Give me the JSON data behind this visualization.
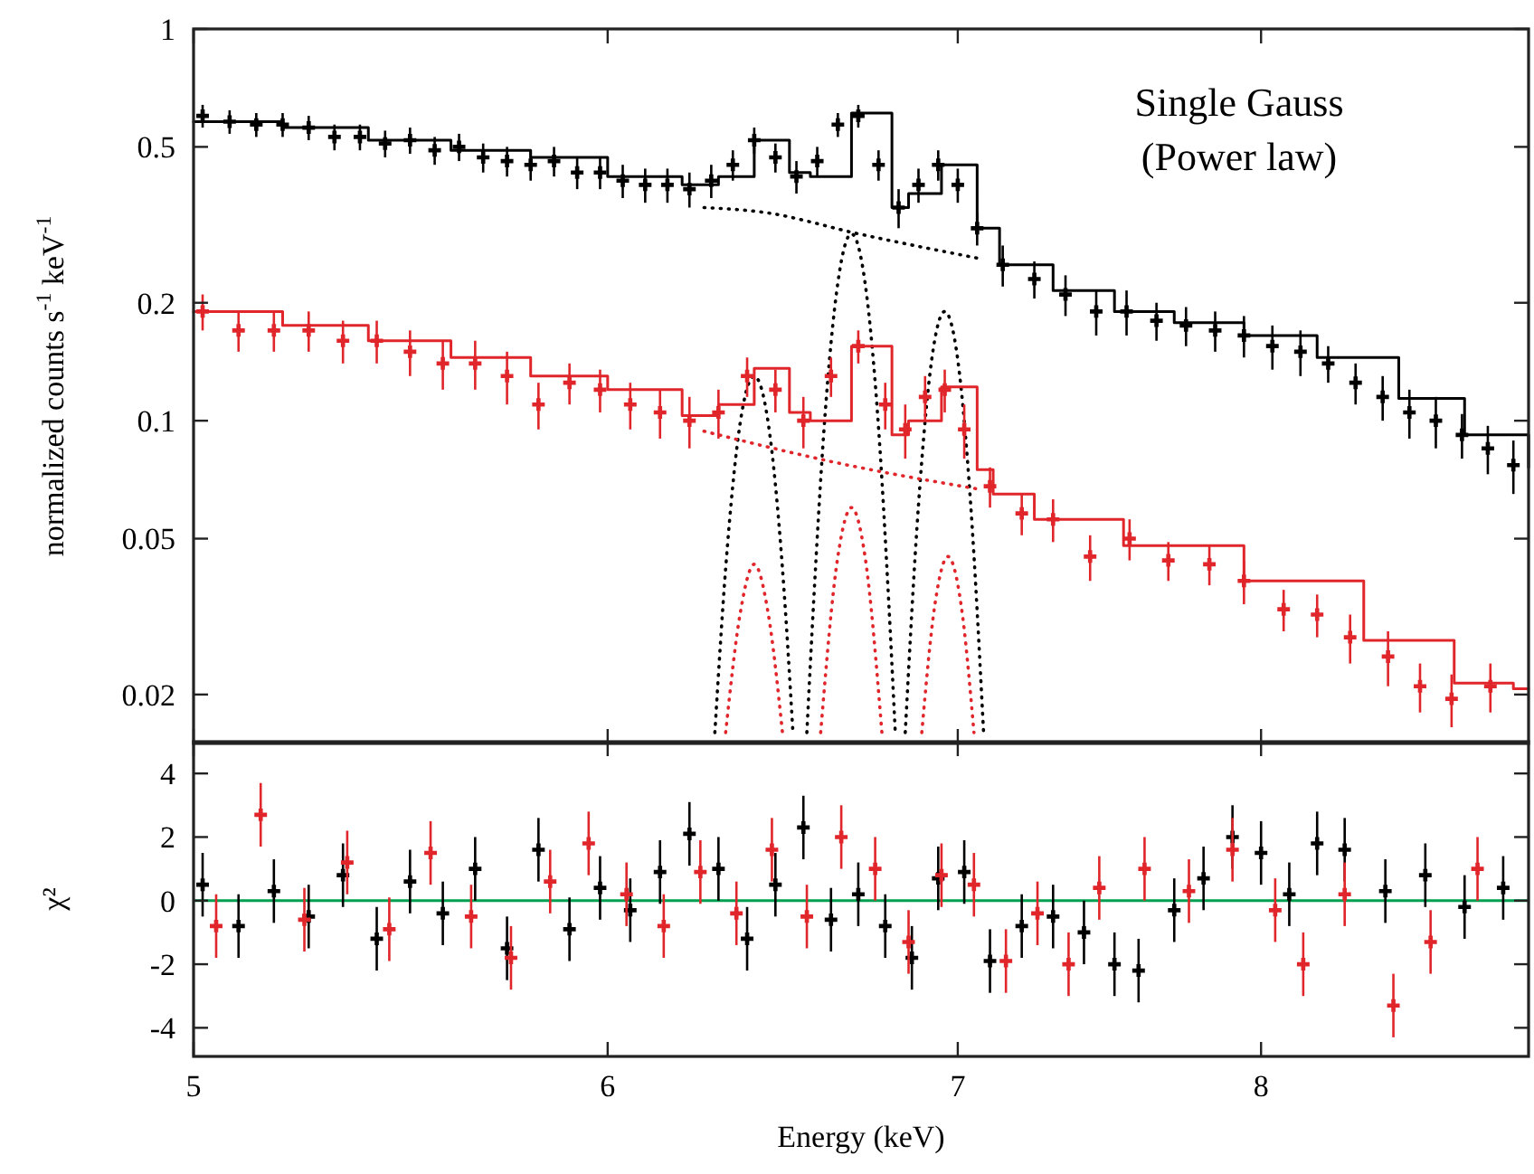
{
  "chart_data": [
    {
      "type": "scatter",
      "ylabel": "normalized counts s$^{-1}$ keV$^{-1}$",
      "log": "xy",
      "xlim": [
        5,
        9
      ],
      "xticks": [
        5,
        6,
        7,
        8
      ],
      "ylim": [
        0.015,
        1
      ],
      "yticks": [
        0.02,
        0.05,
        0.1,
        0.2,
        0.5,
        1
      ],
      "tick_labels": "y",
      "grid": false,
      "annotations": [
        "Single Gauss",
        "(Power law)"
      ],
      "series": [
        {
          "marker": "cross",
          "color": "#000000",
          "x": [
            5.02,
            5.08,
            5.14,
            5.2,
            5.26,
            5.32,
            5.38,
            5.44,
            5.5,
            5.56,
            5.62,
            5.68,
            5.74,
            5.8,
            5.86,
            5.92,
            5.98,
            6.04,
            6.1,
            6.16,
            6.22,
            6.28,
            6.34,
            6.4,
            6.46,
            6.52,
            6.58,
            6.64,
            6.7,
            6.76,
            6.82,
            6.88,
            6.94,
            7.0,
            7.06,
            7.14,
            7.24,
            7.34,
            7.44,
            7.54,
            7.64,
            7.74,
            7.84,
            7.94,
            8.04,
            8.14,
            8.24,
            8.34,
            8.44,
            8.54,
            8.64,
            8.74,
            8.84,
            8.94
          ],
          "values": [
            0.6,
            0.58,
            0.57,
            0.57,
            0.56,
            0.53,
            0.53,
            0.51,
            0.52,
            0.49,
            0.5,
            0.47,
            0.46,
            0.45,
            0.46,
            0.43,
            0.43,
            0.41,
            0.4,
            0.4,
            0.39,
            0.41,
            0.45,
            0.52,
            0.47,
            0.42,
            0.46,
            0.57,
            0.6,
            0.45,
            0.35,
            0.4,
            0.45,
            0.4,
            0.31,
            0.25,
            0.23,
            0.21,
            0.19,
            0.19,
            0.18,
            0.175,
            0.17,
            0.165,
            0.155,
            0.15,
            0.14,
            0.125,
            0.115,
            0.105,
            0.1,
            0.092,
            0.085,
            0.077
          ],
          "errors": [
            0.04,
            0.04,
            0.04,
            0.04,
            0.04,
            0.04,
            0.04,
            0.04,
            0.04,
            0.04,
            0.04,
            0.04,
            0.04,
            0.04,
            0.04,
            0.04,
            0.04,
            0.04,
            0.04,
            0.04,
            0.04,
            0.04,
            0.04,
            0.04,
            0.04,
            0.04,
            0.04,
            0.04,
            0.04,
            0.04,
            0.04,
            0.04,
            0.04,
            0.04,
            0.03,
            0.03,
            0.025,
            0.025,
            0.025,
            0.025,
            0.02,
            0.02,
            0.02,
            0.02,
            0.02,
            0.02,
            0.015,
            0.015,
            0.015,
            0.015,
            0.015,
            0.012,
            0.012,
            0.012
          ]
        },
        {
          "type": "step",
          "color": "#000000",
          "x": [
            5.0,
            5.2,
            5.4,
            5.6,
            5.8,
            6.0,
            6.2,
            6.3,
            6.4,
            6.5,
            6.56,
            6.68,
            6.8,
            6.85,
            6.95,
            7.06,
            7.13,
            7.3,
            7.5,
            7.7,
            7.94,
            8.2,
            8.5,
            8.75,
            9.0
          ],
          "values": [
            0.58,
            0.56,
            0.52,
            0.49,
            0.47,
            0.42,
            0.4,
            0.42,
            0.52,
            0.43,
            0.42,
            0.61,
            0.35,
            0.38,
            0.45,
            0.31,
            0.25,
            0.215,
            0.19,
            0.178,
            0.165,
            0.145,
            0.114,
            0.092,
            0.076
          ]
        },
        {
          "type": "line",
          "line_style": "dotted",
          "color": "#000000",
          "x": [
            6.26,
            6.43,
            6.7,
            7.06
          ],
          "values": [
            0.35,
            0.34,
            0.3,
            0.26
          ]
        },
        {
          "type": "line",
          "line_style": "dotted",
          "color": "#000000",
          "x": [
            6.29,
            6.32,
            6.36,
            6.4,
            6.44,
            6.48,
            6.51
          ],
          "values": [
            0.016,
            0.042,
            0.098,
            0.13,
            0.098,
            0.042,
            0.016
          ]
        },
        {
          "type": "line",
          "line_style": "dotted",
          "color": "#000000",
          "x": [
            6.55,
            6.57,
            6.6,
            6.64,
            6.68,
            6.72,
            6.76,
            6.79,
            6.81
          ],
          "values": [
            0.016,
            0.035,
            0.096,
            0.225,
            0.3,
            0.225,
            0.096,
            0.035,
            0.016
          ]
        },
        {
          "type": "line",
          "line_style": "dotted",
          "color": "#000000",
          "x": [
            6.84,
            6.88,
            6.92,
            6.96,
            7.0,
            7.04,
            7.08
          ],
          "values": [
            0.016,
            0.061,
            0.143,
            0.19,
            0.143,
            0.061,
            0.016
          ]
        },
        {
          "marker": "cross",
          "color": "#e0262a",
          "x": [
            5.02,
            5.1,
            5.18,
            5.26,
            5.34,
            5.42,
            5.5,
            5.58,
            5.66,
            5.74,
            5.82,
            5.9,
            5.98,
            6.06,
            6.14,
            6.22,
            6.3,
            6.38,
            6.46,
            6.54,
            6.62,
            6.7,
            6.78,
            6.84,
            6.9,
            6.96,
            7.02,
            7.1,
            7.2,
            7.3,
            7.42,
            7.55,
            7.68,
            7.82,
            7.94,
            8.08,
            8.2,
            8.32,
            8.46,
            8.58,
            8.7,
            8.85
          ],
          "values": [
            0.19,
            0.17,
            0.17,
            0.17,
            0.16,
            0.16,
            0.15,
            0.14,
            0.14,
            0.13,
            0.11,
            0.125,
            0.12,
            0.11,
            0.105,
            0.1,
            0.105,
            0.13,
            0.12,
            0.1,
            0.13,
            0.155,
            0.11,
            0.095,
            0.115,
            0.12,
            0.095,
            0.068,
            0.058,
            0.056,
            0.045,
            0.05,
            0.044,
            0.043,
            0.039,
            0.033,
            0.032,
            0.028,
            0.025,
            0.021,
            0.0195,
            0.021
          ],
          "errors": [
            0.02,
            0.02,
            0.02,
            0.02,
            0.02,
            0.02,
            0.02,
            0.02,
            0.02,
            0.02,
            0.015,
            0.015,
            0.015,
            0.015,
            0.015,
            0.015,
            0.015,
            0.015,
            0.015,
            0.015,
            0.015,
            0.015,
            0.015,
            0.015,
            0.015,
            0.015,
            0.015,
            0.008,
            0.007,
            0.007,
            0.006,
            0.006,
            0.005,
            0.005,
            0.005,
            0.004,
            0.004,
            0.004,
            0.004,
            0.003,
            0.003,
            0.003
          ]
        },
        {
          "type": "step",
          "color": "#e0262a",
          "x": [
            5.0,
            5.2,
            5.4,
            5.6,
            5.8,
            6.0,
            6.2,
            6.3,
            6.4,
            6.5,
            6.56,
            6.68,
            6.8,
            6.85,
            6.95,
            7.06,
            7.11,
            7.24,
            7.53,
            7.94,
            8.37,
            8.71,
            8.94,
            9.0
          ],
          "values": [
            0.19,
            0.175,
            0.16,
            0.145,
            0.13,
            0.12,
            0.103,
            0.11,
            0.136,
            0.105,
            0.1,
            0.155,
            0.092,
            0.1,
            0.122,
            0.075,
            0.065,
            0.056,
            0.048,
            0.039,
            0.0275,
            0.0214,
            0.0207,
            0.0207
          ]
        },
        {
          "type": "line",
          "line_style": "dotted",
          "color": "#e0262a",
          "x": [
            6.26,
            6.67,
            7.06
          ],
          "values": [
            0.094,
            0.077,
            0.067
          ]
        },
        {
          "type": "line",
          "line_style": "dotted",
          "color": "#e0262a",
          "x": [
            6.32,
            6.36,
            6.4,
            6.44,
            6.48
          ],
          "values": [
            0.016,
            0.032,
            0.043,
            0.032,
            0.016
          ]
        },
        {
          "type": "line",
          "line_style": "dotted",
          "color": "#e0262a",
          "x": [
            6.59,
            6.64,
            6.68,
            6.72,
            6.77
          ],
          "values": [
            0.016,
            0.045,
            0.06,
            0.045,
            0.016
          ]
        },
        {
          "type": "line",
          "line_style": "dotted",
          "color": "#e0262a",
          "x": [
            6.89,
            6.93,
            6.97,
            7.01,
            7.05
          ],
          "values": [
            0.016,
            0.034,
            0.045,
            0.034,
            0.016
          ]
        }
      ]
    },
    {
      "type": "scatter",
      "xlabel": "Energy (keV)",
      "ylabel": "χ²",
      "log": "x",
      "xlim": [
        5,
        9
      ],
      "xticks": [
        5,
        6,
        7,
        8
      ],
      "ylim": [
        -4.9,
        5
      ],
      "yticks": [
        -4,
        -2,
        0,
        2,
        4
      ],
      "grid": false,
      "ref_lines": [
        {
          "axis": "y",
          "value": 0,
          "color": "#00a050"
        }
      ],
      "series": [
        {
          "marker": "cross",
          "color": "#000000",
          "x": [
            5.02,
            5.1,
            5.18,
            5.26,
            5.34,
            5.42,
            5.5,
            5.58,
            5.66,
            5.74,
            5.82,
            5.9,
            5.98,
            6.06,
            6.14,
            6.22,
            6.3,
            6.38,
            6.46,
            6.54,
            6.62,
            6.7,
            6.78,
            6.86,
            6.94,
            7.02,
            7.1,
            7.2,
            7.3,
            7.4,
            7.5,
            7.58,
            7.7,
            7.8,
            7.9,
            8.0,
            8.1,
            8.2,
            8.3,
            8.45,
            8.6,
            8.75,
            8.9
          ],
          "values": [
            0.5,
            -0.8,
            0.3,
            -0.5,
            0.8,
            -1.2,
            0.6,
            -0.4,
            1.0,
            -1.5,
            1.6,
            -0.9,
            0.4,
            -0.3,
            0.9,
            2.1,
            1.0,
            -1.2,
            0.5,
            2.3,
            -0.6,
            0.2,
            -0.8,
            -1.8,
            0.7,
            0.9,
            -1.9,
            -0.8,
            -0.5,
            -1.0,
            -2.0,
            -2.2,
            -0.3,
            0.7,
            2.0,
            1.5,
            0.2,
            1.8,
            1.6,
            0.3,
            0.8,
            -0.2,
            0.4
          ],
          "errors": [
            1,
            1,
            1,
            1,
            1,
            1,
            1,
            1,
            1,
            1,
            1,
            1,
            1,
            1,
            1,
            1,
            1,
            1,
            1,
            1,
            1,
            1,
            1,
            1,
            1,
            1,
            1,
            1,
            1,
            1,
            1,
            1,
            1,
            1,
            1,
            1,
            1,
            1,
            1,
            1,
            1,
            1,
            1
          ]
        },
        {
          "marker": "cross",
          "color": "#e0262a",
          "x": [
            5.05,
            5.15,
            5.25,
            5.35,
            5.45,
            5.55,
            5.65,
            5.75,
            5.85,
            5.95,
            6.05,
            6.15,
            6.25,
            6.35,
            6.45,
            6.55,
            6.65,
            6.75,
            6.85,
            6.95,
            7.05,
            7.15,
            7.25,
            7.35,
            7.45,
            7.6,
            7.75,
            7.9,
            8.05,
            8.15,
            8.3,
            8.48,
            8.62,
            8.8
          ],
          "values": [
            -0.8,
            2.7,
            -0.6,
            1.2,
            -0.9,
            1.5,
            -0.5,
            -1.8,
            0.6,
            1.8,
            0.2,
            -0.8,
            0.9,
            -0.4,
            1.6,
            -0.5,
            2.0,
            1.0,
            -1.3,
            0.8,
            0.5,
            -1.9,
            -0.4,
            -2.0,
            0.4,
            1.0,
            0.3,
            1.6,
            -0.3,
            -2.0,
            0.2,
            -3.3,
            -1.3,
            1.0
          ],
          "errors": [
            1,
            1,
            1,
            1,
            1,
            1,
            1,
            1,
            1,
            1,
            1,
            1,
            1,
            1,
            1,
            1,
            1,
            1,
            1,
            1,
            1,
            1,
            1,
            1,
            1,
            1,
            1,
            1,
            1,
            1,
            1,
            1,
            1,
            1
          ]
        }
      ]
    }
  ]
}
